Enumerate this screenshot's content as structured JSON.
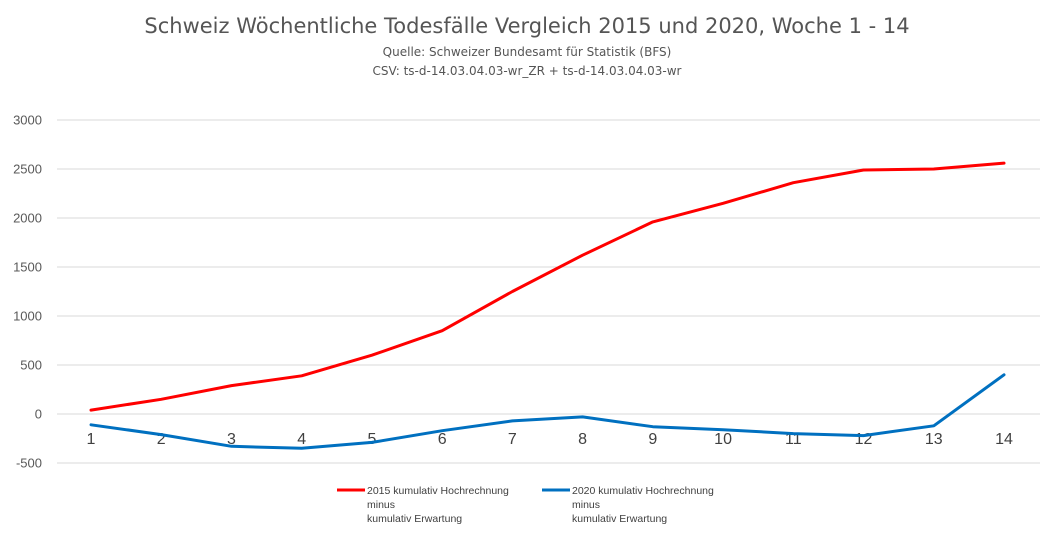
{
  "chart_data": {
    "type": "line",
    "title": "Schweiz Wöchentliche Todesfälle Vergleich 2015 und 2020, Woche 1 - 14",
    "subtitle_lines": [
      "Quelle: Schweizer Bundesamt für Statistik (BFS)",
      "CSV:  ts-d-14.03.04.03-wr_ZR + ts-d-14.03.04.03-wr"
    ],
    "xlabel": "",
    "ylabel": "",
    "ylim": [
      -500,
      3000
    ],
    "yticks": [
      3000,
      2500,
      2000,
      1500,
      1000,
      500,
      0,
      -500
    ],
    "categories": [
      "1",
      "2",
      "3",
      "4",
      "5",
      "6",
      "7",
      "8",
      "9",
      "10",
      "11",
      "12",
      "13",
      "14"
    ],
    "grid": true,
    "legend_position": "bottom",
    "series": [
      {
        "name_lines": [
          "2015 kumulativ Hochrechnung",
          "minus",
          "kumulativ Erwartung"
        ],
        "color": "#ff0000",
        "values": [
          40,
          150,
          290,
          390,
          600,
          850,
          1250,
          1620,
          1960,
          2150,
          2360,
          2490,
          2500,
          2560
        ]
      },
      {
        "name_lines": [
          "2020 kumulativ Hochrechnung",
          "minus",
          "kumulativ Erwartung"
        ],
        "color": "#0070c0",
        "values": [
          -110,
          -210,
          -330,
          -350,
          -290,
          -170,
          -70,
          -30,
          -130,
          -160,
          -200,
          -220,
          -120,
          400
        ]
      }
    ]
  }
}
